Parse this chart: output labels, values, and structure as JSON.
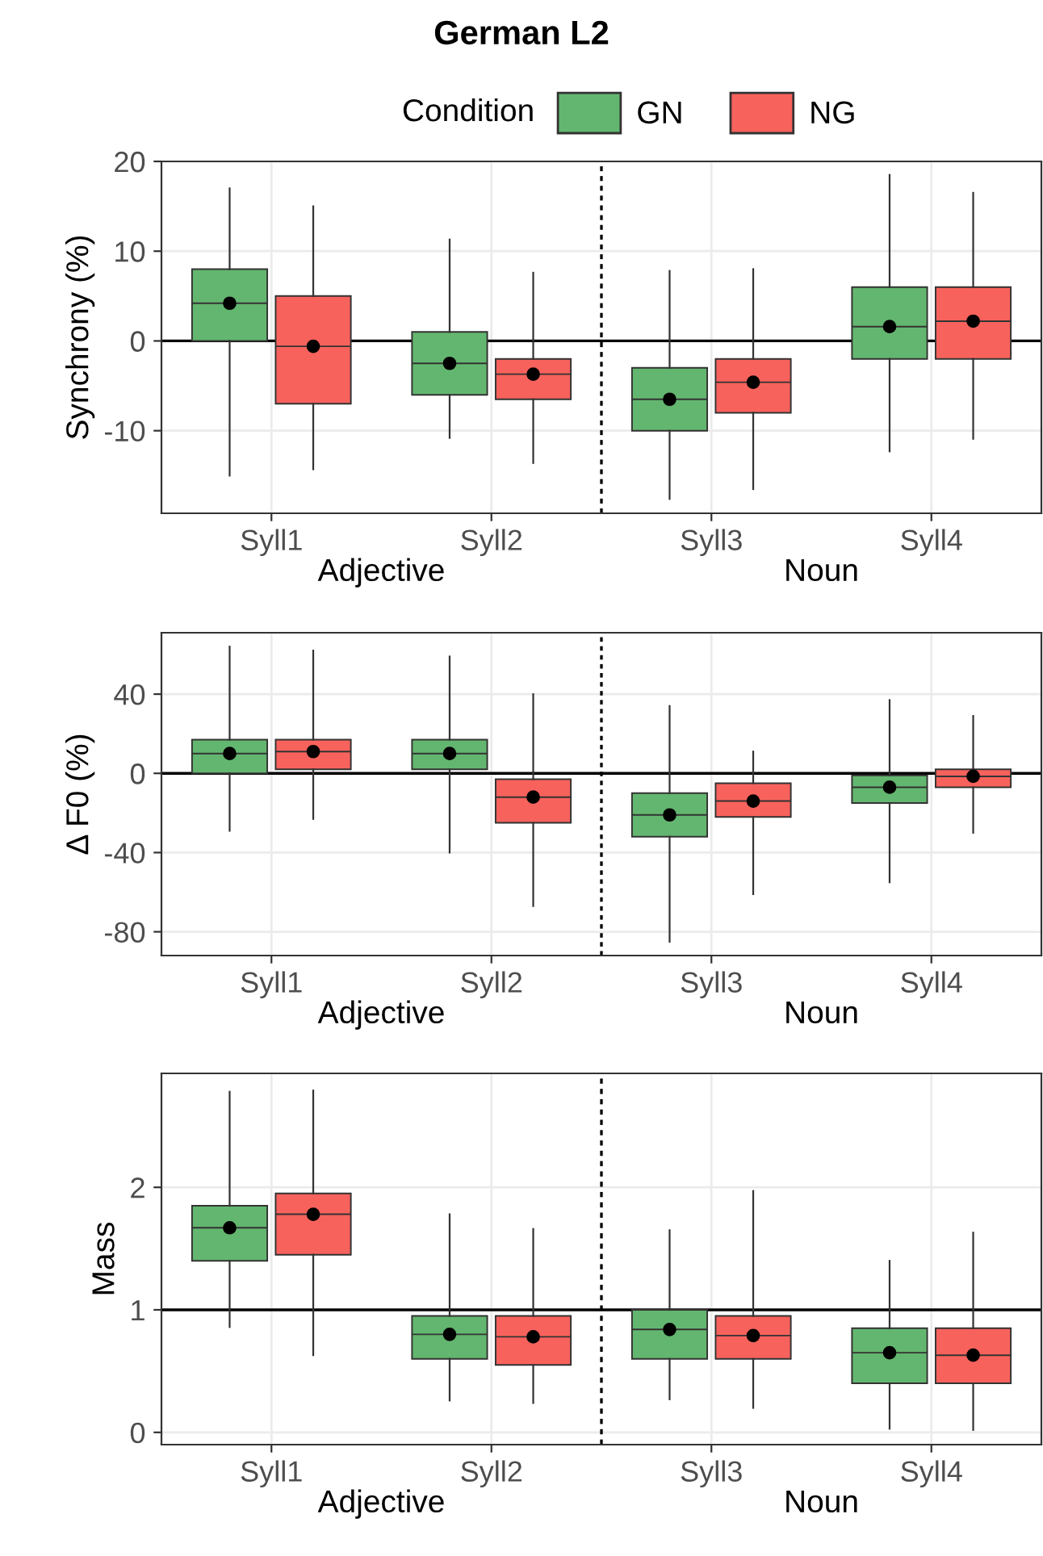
{
  "chart_data": [
    {
      "type": "box",
      "title": "German L2",
      "legend": "top",
      "legend_title": "Condition",
      "ylabel": "Synchrony (%)",
      "categories": [
        "Syll1",
        "Syll2",
        "Syll3",
        "Syll4"
      ],
      "ylim": [
        -19.2,
        20
      ],
      "yticks": [
        -10,
        0,
        10,
        20
      ],
      "grid": true,
      "annotations": [
        "Adjective",
        "Noun"
      ],
      "ref_lines": [
        {
          "axis": "y",
          "value": 0,
          "line_style": "solid",
          "color": "#000000"
        }
      ],
      "series": [
        {
          "name": "GN",
          "color": "#63b66f",
          "boxes": [
            {
              "low": -15,
              "q1": 0,
              "median": 4.2,
              "q3": 8,
              "high": 17,
              "mean": 4.2
            },
            {
              "low": -10.8,
              "q1": -6,
              "median": -2.5,
              "q3": 1,
              "high": 11.3,
              "mean": -2.5
            },
            {
              "low": -17.6,
              "q1": -10,
              "median": -6.5,
              "q3": -3,
              "high": 7.8,
              "mean": -6.5
            },
            {
              "low": -12.3,
              "q1": -2,
              "median": 1.6,
              "q3": 6,
              "high": 18.5,
              "mean": 1.6
            }
          ]
        },
        {
          "name": "NG",
          "color": "#f8625c",
          "boxes": [
            {
              "low": -14.3,
              "q1": -7,
              "median": -0.6,
              "q3": 5,
              "high": 15,
              "mean": -0.6
            },
            {
              "low": -13.6,
              "q1": -6.5,
              "median": -3.7,
              "q3": -2,
              "high": 7.6,
              "mean": -3.7
            },
            {
              "low": -16.5,
              "q1": -8,
              "median": -4.6,
              "q3": -2,
              "high": 8,
              "mean": -4.6
            },
            {
              "low": -10.9,
              "q1": -2,
              "median": 2.2,
              "q3": 6,
              "high": 16.5,
              "mean": 2.2
            }
          ]
        }
      ]
    },
    {
      "type": "box",
      "ylabel": "Δ F0 (%)",
      "categories": [
        "Syll1",
        "Syll2",
        "Syll3",
        "Syll4"
      ],
      "ylim": [
        -92,
        71
      ],
      "yticks": [
        -80,
        -40,
        0,
        40
      ],
      "grid": true,
      "annotations": [
        "Adjective",
        "Noun"
      ],
      "ref_lines": [
        {
          "axis": "y",
          "value": 0,
          "line_style": "solid",
          "color": "#000000"
        }
      ],
      "series": [
        {
          "color": "#63b66f",
          "boxes": [
            {
              "low": -29,
              "q1": 0,
              "median": 10,
              "q3": 17,
              "high": 64,
              "mean": 10
            },
            {
              "low": -40,
              "q1": 2,
              "median": 10,
              "q3": 17,
              "high": 59,
              "mean": 10
            },
            {
              "low": -85,
              "q1": -32,
              "median": -21,
              "q3": -10,
              "high": 34,
              "mean": -21
            },
            {
              "low": -55,
              "q1": -15,
              "median": -7,
              "q3": -1,
              "high": 37,
              "mean": -7
            }
          ]
        },
        {
          "color": "#f8625c",
          "boxes": [
            {
              "low": -23,
              "q1": 2,
              "median": 11,
              "q3": 17,
              "high": 62,
              "mean": 11
            },
            {
              "low": -67,
              "q1": -25,
              "median": -12,
              "q3": -3,
              "high": 40,
              "mean": -12
            },
            {
              "low": -61,
              "q1": -22,
              "median": -14,
              "q3": -5,
              "high": 11,
              "mean": -14
            },
            {
              "low": -30,
              "q1": -7,
              "median": -1.5,
              "q3": 2,
              "high": 29,
              "mean": -1.5
            }
          ]
        }
      ]
    },
    {
      "type": "box",
      "ylabel": "Mass",
      "categories": [
        "Syll1",
        "Syll2",
        "Syll3",
        "Syll4"
      ],
      "ylim": [
        -0.1,
        2.93
      ],
      "yticks": [
        0,
        1,
        2
      ],
      "grid": true,
      "annotations": [
        "Adjective",
        "Noun"
      ],
      "ref_lines": [
        {
          "axis": "y",
          "value": 1,
          "line_style": "solid",
          "color": "#000000"
        }
      ],
      "series": [
        {
          "color": "#63b66f",
          "boxes": [
            {
              "low": 0.86,
              "q1": 1.4,
              "median": 1.67,
              "q3": 1.85,
              "high": 2.78,
              "mean": 1.67
            },
            {
              "low": 0.26,
              "q1": 0.6,
              "median": 0.8,
              "q3": 0.95,
              "high": 1.78,
              "mean": 0.8
            },
            {
              "low": 0.27,
              "q1": 0.6,
              "median": 0.84,
              "q3": 1.0,
              "high": 1.65,
              "mean": 0.84
            },
            {
              "low": 0.03,
              "q1": 0.4,
              "median": 0.65,
              "q3": 0.85,
              "high": 1.4,
              "mean": 0.65
            }
          ]
        },
        {
          "color": "#f8625c",
          "boxes": [
            {
              "low": 0.63,
              "q1": 1.45,
              "median": 1.78,
              "q3": 1.95,
              "high": 2.79,
              "mean": 1.78
            },
            {
              "low": 0.24,
              "q1": 0.55,
              "median": 0.78,
              "q3": 0.95,
              "high": 1.66,
              "mean": 0.78
            },
            {
              "low": 0.2,
              "q1": 0.6,
              "median": 0.79,
              "q3": 0.95,
              "high": 1.97,
              "mean": 0.79
            },
            {
              "low": 0.02,
              "q1": 0.4,
              "median": 0.63,
              "q3": 0.85,
              "high": 1.63,
              "mean": 0.63
            }
          ]
        }
      ]
    }
  ]
}
